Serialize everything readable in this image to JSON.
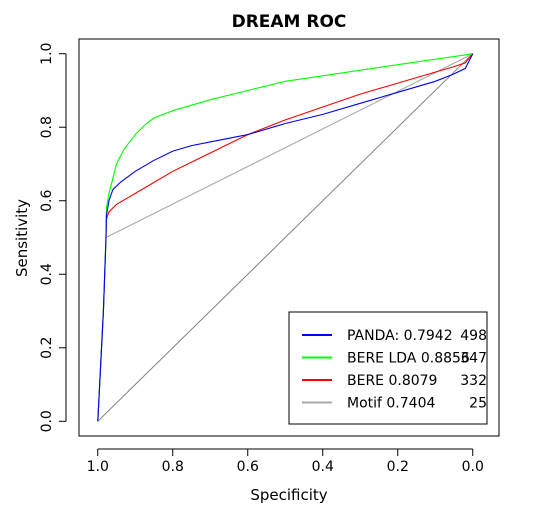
{
  "chart_data": {
    "type": "line",
    "title": "DREAM ROC",
    "xlabel": "Specificity",
    "ylabel": "Sensitivity",
    "x_reversed": true,
    "xlim": [
      1.05,
      -0.07
    ],
    "ylim": [
      -0.04,
      1.04
    ],
    "x_ticks": [
      1.0,
      0.8,
      0.6,
      0.4,
      0.2,
      0.0
    ],
    "x_tick_labels": [
      "1.0",
      "0.8",
      "0.6",
      "0.4",
      "0.2",
      "0.0"
    ],
    "y_ticks": [
      0.0,
      0.2,
      0.4,
      0.6,
      0.8,
      1.0
    ],
    "y_tick_labels": [
      "0.0",
      "0.2",
      "0.4",
      "0.6",
      "0.8",
      "1.0"
    ],
    "grid": false,
    "legend_position": "bottom-right",
    "reference_line": {
      "x": [
        1.0,
        0.0
      ],
      "y": [
        0.0,
        1.0
      ],
      "color": "#808080"
    },
    "series": [
      {
        "name": "PANDA:  0.7942",
        "clipped_suffix": "498",
        "color": "#0000ff",
        "x": [
          1.0,
          0.985,
          0.978,
          0.977,
          0.97,
          0.96,
          0.94,
          0.9,
          0.85,
          0.8,
          0.75,
          0.7,
          0.6,
          0.5,
          0.4,
          0.3,
          0.2,
          0.1,
          0.05,
          0.02,
          0.01,
          0.0
        ],
        "y": [
          0.0,
          0.3,
          0.5,
          0.56,
          0.6,
          0.63,
          0.65,
          0.68,
          0.71,
          0.735,
          0.75,
          0.76,
          0.78,
          0.81,
          0.835,
          0.865,
          0.895,
          0.925,
          0.945,
          0.96,
          0.98,
          1.0
        ]
      },
      {
        "name": "BERE LDA 0.8856",
        "clipped_suffix": "347",
        "color": "#00ff00",
        "x": [
          1.0,
          0.985,
          0.978,
          0.977,
          0.97,
          0.96,
          0.95,
          0.93,
          0.9,
          0.87,
          0.85,
          0.8,
          0.75,
          0.7,
          0.6,
          0.5,
          0.4,
          0.3,
          0.2,
          0.1,
          0.05,
          0.0
        ],
        "y": [
          0.0,
          0.3,
          0.5,
          0.58,
          0.62,
          0.66,
          0.7,
          0.74,
          0.78,
          0.81,
          0.825,
          0.845,
          0.86,
          0.875,
          0.9,
          0.925,
          0.94,
          0.955,
          0.97,
          0.985,
          0.992,
          1.0
        ]
      },
      {
        "name": "BERE 0.8079",
        "clipped_suffix": "332",
        "color": "#ff0000",
        "x": [
          1.0,
          0.985,
          0.978,
          0.977,
          0.97,
          0.95,
          0.9,
          0.85,
          0.8,
          0.75,
          0.7,
          0.65,
          0.6,
          0.5,
          0.4,
          0.3,
          0.2,
          0.1,
          0.05,
          0.02,
          0.0
        ],
        "y": [
          0.0,
          0.3,
          0.5,
          0.55,
          0.57,
          0.59,
          0.62,
          0.65,
          0.68,
          0.705,
          0.73,
          0.755,
          0.78,
          0.82,
          0.855,
          0.89,
          0.92,
          0.95,
          0.965,
          0.975,
          1.0
        ]
      },
      {
        "name": "Motif 0.7404",
        "clipped_suffix": "25",
        "color": "#aaaaaa",
        "x": [
          1.0,
          0.985,
          0.978,
          0.0
        ],
        "y": [
          0.0,
          0.3,
          0.5,
          1.0
        ]
      }
    ]
  }
}
